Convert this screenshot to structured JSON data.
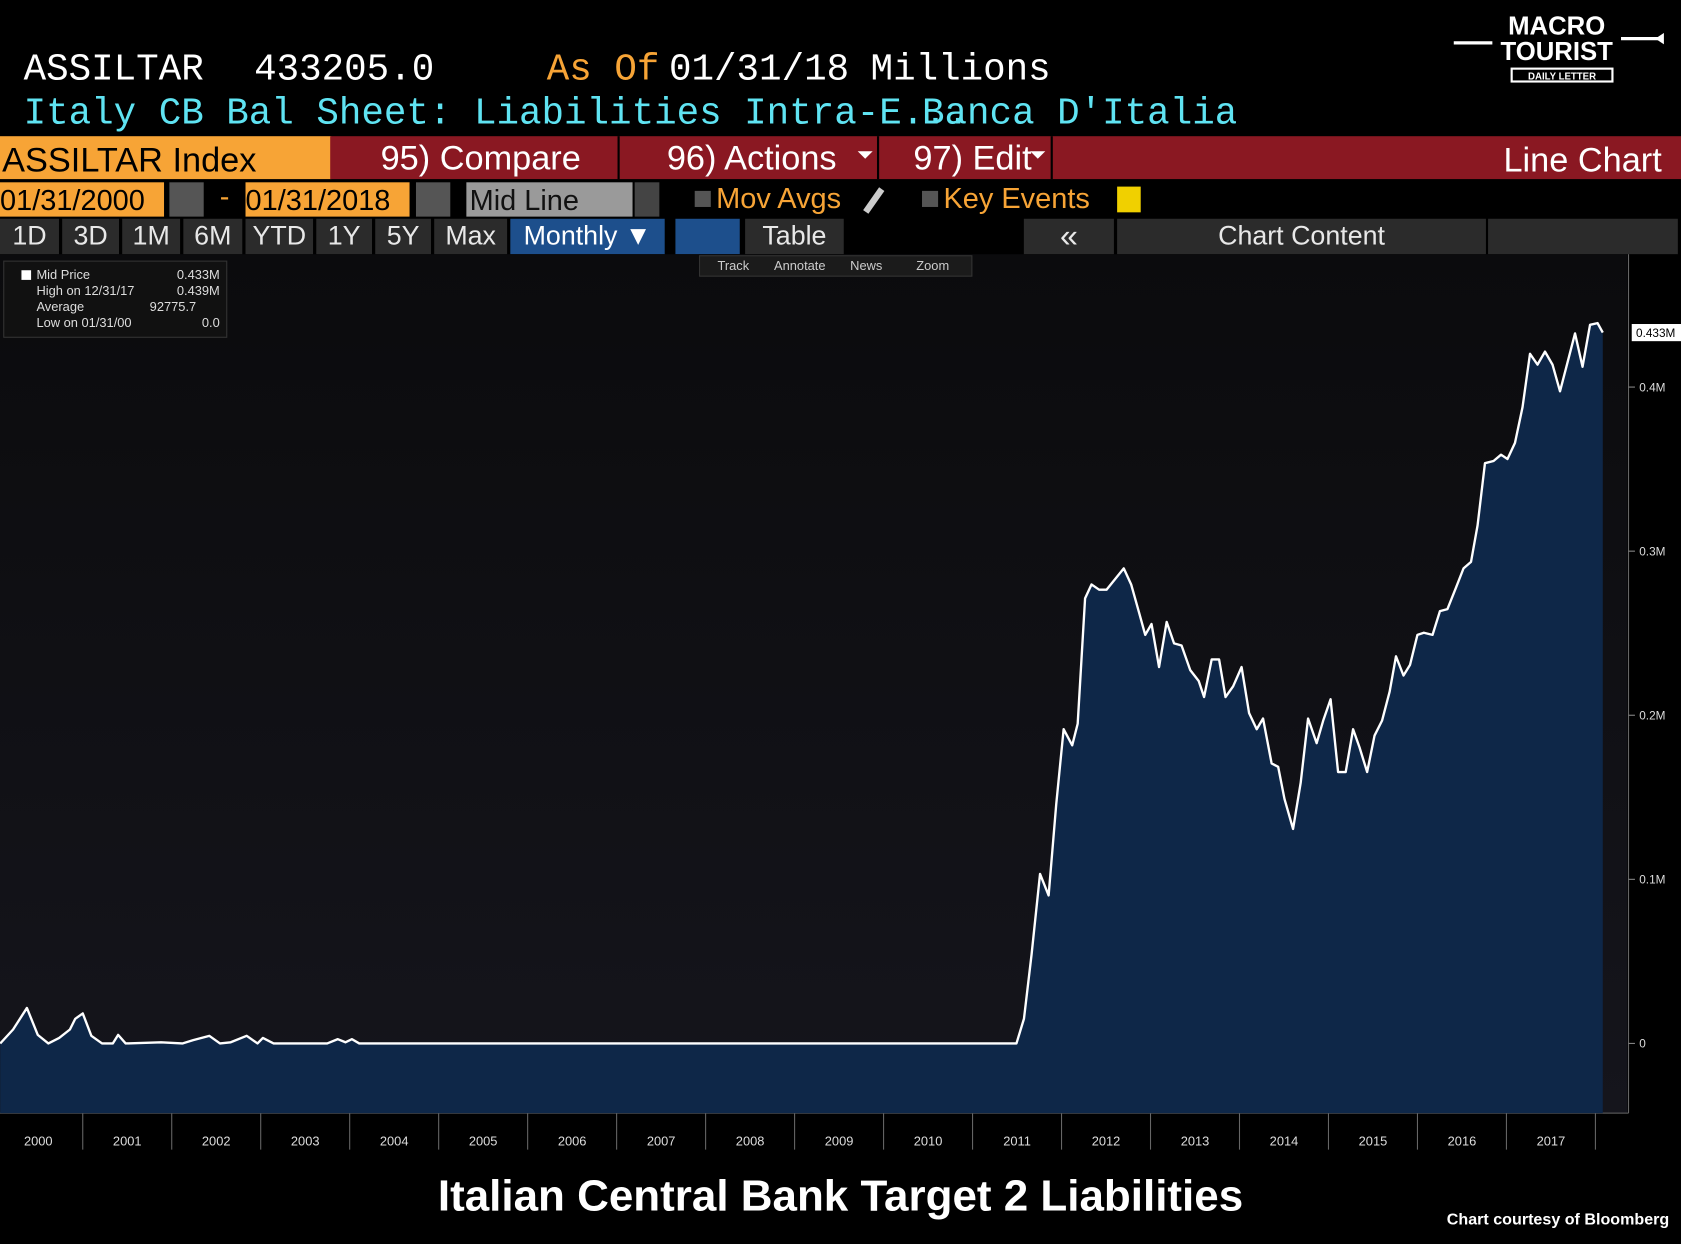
{
  "header": {
    "ticker": "ASSILTAR",
    "last": "433205.0",
    "as_of": "As Of",
    "date": "01/31/18",
    "units": "Millions",
    "description": "Italy CB Bal Sheet: Liabilities Intra-E...",
    "source": "Banca D'Italia"
  },
  "toolbar": {
    "security": "ASSILTAR Index",
    "compare": "95) Compare",
    "actions": "96) Actions",
    "edit": "97) Edit",
    "view": "Line Chart"
  },
  "range_bar": {
    "start": "01/31/2000",
    "dash": "-",
    "end": "01/31/2018",
    "mode": "Mid Line",
    "mov_avgs": "Mov Avgs",
    "key_events": "Key Events"
  },
  "period_bar": {
    "periods": [
      "1D",
      "3D",
      "1M",
      "6M",
      "YTD",
      "1Y",
      "5Y",
      "Max"
    ],
    "frequency": "Monthly ▼",
    "table": "Table",
    "collapse": "«",
    "chart_content": "Chart Content"
  },
  "tools": [
    "Track",
    "Annotate",
    "News",
    "Zoom"
  ],
  "legend": [
    [
      "Mid Price",
      "0.433M"
    ],
    [
      "High on 12/31/17",
      "0.439M"
    ],
    [
      "Average",
      "92775.7"
    ],
    [
      "Low on 01/31/00",
      "0.0"
    ]
  ],
  "logo": {
    "line1": "MACRO",
    "line2": "TOURIST",
    "line3": "DAILY LETTER"
  },
  "caption": "Italian Central Bank Target 2 Liabilities",
  "credit": "Chart courtesy of Bloomberg",
  "chart_data": {
    "type": "area",
    "line_color": "#ffffff",
    "fill_color": "#0e2748",
    "x": [
      2000.072,
      2000.217,
      2000.373,
      2000.494,
      2000.614,
      2000.735,
      2000.855,
      2000.916,
      2001.0,
      2001.096,
      2001.217,
      2001.337,
      2001.398,
      2001.482,
      2001.88,
      2002.12,
      2002.241,
      2002.422,
      2002.542,
      2002.663,
      2002.843,
      2002.964,
      2003.024,
      2003.145,
      2003.747,
      2003.867,
      2003.952,
      2004.024,
      2004.108,
      2011.494,
      2011.578,
      2011.663,
      2011.759,
      2011.855,
      2011.94,
      2012.024,
      2012.12,
      2012.181,
      2012.265,
      2012.337,
      2012.422,
      2012.506,
      2012.602,
      2012.699,
      2012.783,
      2012.867,
      2012.94,
      2013.012,
      2013.096,
      2013.181,
      2013.265,
      2013.349,
      2013.446,
      2013.542,
      2013.602,
      2013.687,
      2013.771,
      2013.843,
      2013.928,
      2014.024,
      2014.108,
      2014.193,
      2014.265,
      2014.361,
      2014.434,
      2014.506,
      2014.602,
      2014.687,
      2014.771,
      2014.867,
      2014.94,
      2015.024,
      2015.108,
      2015.193,
      2015.277,
      2015.349,
      2015.434,
      2015.518,
      2015.602,
      2015.687,
      2015.759,
      2015.843,
      2015.916,
      2016.0,
      2016.072,
      2016.169,
      2016.253,
      2016.337,
      2016.434,
      2016.518,
      2016.602,
      2016.675,
      2016.759,
      2016.855,
      2016.94,
      2017.012,
      2017.096,
      2017.181,
      2017.265,
      2017.349,
      2017.434,
      2017.518,
      2017.602,
      2017.687,
      2017.771,
      2017.855,
      2017.94,
      2018.024,
      2018.083
    ],
    "values": [
      0,
      0.0085,
      0.0216,
      0.0052,
      0,
      0.0033,
      0.0085,
      0.015,
      0.0183,
      0.0046,
      0,
      0,
      0.0052,
      0,
      0.0007,
      0,
      0.002,
      0.0046,
      0,
      0.0007,
      0.0046,
      0,
      0.0033,
      0,
      0,
      0.0026,
      0.0007,
      0.0026,
      0,
      0,
      0.015,
      0.0542,
      0.1033,
      0.0902,
      0.1458,
      0.1915,
      0.1817,
      0.1948,
      0.2712,
      0.2797,
      0.2765,
      0.2765,
      0.283,
      0.2895,
      0.2797,
      0.2634,
      0.249,
      0.2556,
      0.2294,
      0.2569,
      0.2438,
      0.2425,
      0.2275,
      0.2209,
      0.2111,
      0.234,
      0.234,
      0.2111,
      0.2176,
      0.2294,
      0.2013,
      0.1915,
      0.198,
      0.1706,
      0.1686,
      0.149,
      0.1307,
      0.1588,
      0.198,
      0.183,
      0.1967,
      0.2098,
      0.1654,
      0.1654,
      0.1915,
      0.1804,
      0.1654,
      0.1876,
      0.1967,
      0.2144,
      0.2359,
      0.2242,
      0.2307,
      0.249,
      0.2503,
      0.249,
      0.2634,
      0.2647,
      0.2778,
      0.2895,
      0.2935,
      0.3157,
      0.3536,
      0.3549,
      0.3588,
      0.3562,
      0.366,
      0.3876,
      0.4203,
      0.4137,
      0.4216,
      0.4137,
      0.3974,
      0.415,
      0.4327,
      0.4124,
      0.4379,
      0.439,
      0.4332
    ],
    "last_label": "0.433M",
    "xlim": [
      2000.07,
      2018.36
    ],
    "xticks": [
      {
        "value": 2000.5,
        "label": "2000"
      },
      {
        "value": 2001.5,
        "label": "2001"
      },
      {
        "value": 2002.5,
        "label": "2002"
      },
      {
        "value": 2003.5,
        "label": "2003"
      },
      {
        "value": 2004.5,
        "label": "2004"
      },
      {
        "value": 2005.5,
        "label": "2005"
      },
      {
        "value": 2006.5,
        "label": "2006"
      },
      {
        "value": 2007.5,
        "label": "2007"
      },
      {
        "value": 2008.5,
        "label": "2008"
      },
      {
        "value": 2009.5,
        "label": "2009"
      },
      {
        "value": 2010.5,
        "label": "2010"
      },
      {
        "value": 2011.5,
        "label": "2011"
      },
      {
        "value": 2012.5,
        "label": "2012"
      },
      {
        "value": 2013.5,
        "label": "2013"
      },
      {
        "value": 2014.5,
        "label": "2014"
      },
      {
        "value": 2015.5,
        "label": "2015"
      },
      {
        "value": 2016.5,
        "label": "2016"
      },
      {
        "value": 2017.5,
        "label": "2017"
      }
    ],
    "ylim": [
      -0.0425,
      0.481
    ],
    "yticks": [
      0,
      {
        "value": 0.1,
        "label": "0.1M"
      },
      {
        "value": 0.2,
        "label": "0.2M"
      },
      {
        "value": 0.3,
        "label": "0.3M"
      },
      {
        "value": 0.4,
        "label": "0.4M"
      }
    ]
  }
}
